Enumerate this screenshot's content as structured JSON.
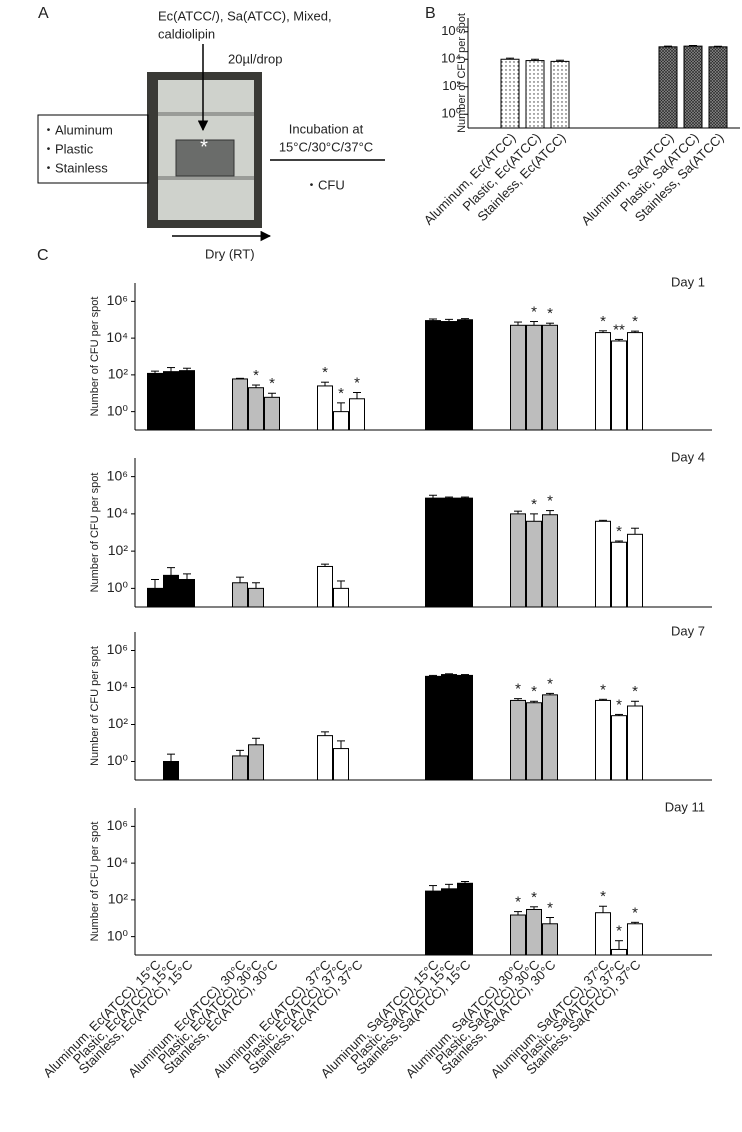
{
  "panel_a": {
    "label": "A",
    "samples_line1": "Ec(ATCC/), Sa(ATCC), Mixed,",
    "samples_line2": "caldiolipin",
    "drop": "20µl/drop",
    "photo_mark": "*",
    "surfaces": [
      "・Aluminum",
      "・Plastic",
      "・Stainless"
    ],
    "incubation_line1": "Incubation at",
    "incubation_line2": "15°C/30°C/37°C",
    "readout": "・CFU",
    "dry": "Dry (RT)"
  },
  "chart_data": [
    {
      "type": "bar",
      "panel_label": "B",
      "y_label": "Number of CFU per spot",
      "log_scale": true,
      "ylim": [
        0.1,
        10000000
      ],
      "yticks": [
        {
          "value": 1,
          "label": "10⁰"
        },
        {
          "value": 100,
          "label": "10²"
        },
        {
          "value": 10000,
          "label": "10⁴"
        },
        {
          "value": 1000000,
          "label": "10⁶"
        }
      ],
      "categories": [
        "Aluminum, Ec(ATCC)",
        "Plastic, Ec(ATCC)",
        "Stainless, Ec(ATCC)",
        "Aluminum, Sa(ATCC)",
        "Plastic, Sa(ATCC)",
        "Stainless, Sa(ATCC)"
      ],
      "values": [
        10000,
        8000,
        7000,
        80000,
        90000,
        80000
      ],
      "errors": [
        2000,
        2000,
        1500,
        10000,
        10000,
        8000
      ],
      "patterns": [
        "dots",
        "dots",
        "dots",
        "crosshatch",
        "crosshatch",
        "crosshatch"
      ]
    },
    {
      "type": "bar",
      "panel_label": "C",
      "title": "Day 1",
      "y_label": "Number of CFU  per spot",
      "log_scale": true,
      "ylim": [
        0.1,
        10000000
      ],
      "yticks": [
        {
          "value": 1,
          "label": "10⁰"
        },
        {
          "value": 100,
          "label": "10²"
        },
        {
          "value": 10000,
          "label": "10⁴"
        },
        {
          "value": 1000000,
          "label": "10⁶"
        }
      ],
      "values": [
        120,
        150,
        170,
        60,
        20,
        6,
        25,
        1,
        5,
        90000,
        80000,
        100000,
        50000,
        50000,
        50000,
        20000,
        7000,
        20000
      ],
      "errors": [
        40,
        100,
        60,
        5,
        8,
        4,
        15,
        2,
        6,
        20000,
        25000,
        15000,
        25000,
        30000,
        15000,
        5000,
        1500,
        4000
      ],
      "significance": [
        null,
        null,
        null,
        null,
        "*",
        "*",
        "*",
        "*",
        "*",
        null,
        null,
        null,
        null,
        "*",
        "*",
        "*",
        "**",
        "*"
      ],
      "colors": [
        "#000000",
        "#000000",
        "#000000",
        "#bdbdbd",
        "#bdbdbd",
        "#bdbdbd",
        "#ffffff",
        "#ffffff",
        "#ffffff",
        "#000000",
        "#000000",
        "#000000",
        "#bdbdbd",
        "#bdbdbd",
        "#bdbdbd",
        "#ffffff",
        "#ffffff",
        "#ffffff"
      ]
    },
    {
      "type": "bar",
      "title": "Day 4",
      "y_label": "Number of CFU  per spot",
      "log_scale": true,
      "ylim": [
        0.1,
        10000000
      ],
      "yticks": [
        {
          "value": 1,
          "label": "10⁰"
        },
        {
          "value": 100,
          "label": "10²"
        },
        {
          "value": 10000,
          "label": "10⁴"
        },
        {
          "value": 1000000,
          "label": "10⁶"
        }
      ],
      "values": [
        1,
        5,
        3,
        2,
        1,
        null,
        15,
        1,
        null,
        70000,
        70000,
        70000,
        10000,
        4000,
        9000,
        4000,
        300,
        800
      ],
      "errors": [
        2,
        8,
        3,
        2,
        1,
        null,
        5,
        1.5,
        null,
        30000,
        10000,
        10000,
        4000,
        6000,
        6000,
        500,
        50,
        900
      ],
      "significance": [
        null,
        null,
        null,
        null,
        null,
        null,
        null,
        null,
        null,
        null,
        null,
        null,
        null,
        "*",
        "*",
        null,
        "*",
        null
      ],
      "colors": [
        "#000000",
        "#000000",
        "#000000",
        "#bdbdbd",
        "#bdbdbd",
        "#bdbdbd",
        "#ffffff",
        "#ffffff",
        "#ffffff",
        "#000000",
        "#000000",
        "#000000",
        "#bdbdbd",
        "#bdbdbd",
        "#bdbdbd",
        "#ffffff",
        "#ffffff",
        "#ffffff"
      ]
    },
    {
      "type": "bar",
      "title": "Day 7",
      "y_label": "Number of CFU  per spot",
      "log_scale": true,
      "ylim": [
        0.1,
        10000000
      ],
      "yticks": [
        {
          "value": 1,
          "label": "10⁰"
        },
        {
          "value": 100,
          "label": "10²"
        },
        {
          "value": 10000,
          "label": "10⁴"
        },
        {
          "value": 1000000,
          "label": "10⁶"
        }
      ],
      "values": [
        null,
        1,
        null,
        2,
        8,
        null,
        25,
        5,
        null,
        40000,
        50000,
        45000,
        2000,
        1500,
        4000,
        2000,
        300,
        1000
      ],
      "errors": [
        null,
        1.5,
        null,
        2,
        10,
        null,
        15,
        8,
        null,
        5000,
        5000,
        5000,
        500,
        300,
        800,
        300,
        50,
        800
      ],
      "significance": [
        null,
        null,
        null,
        null,
        null,
        null,
        null,
        null,
        null,
        null,
        null,
        null,
        "*",
        "*",
        "*",
        "*",
        "*",
        "*"
      ],
      "colors": [
        "#000000",
        "#000000",
        "#000000",
        "#bdbdbd",
        "#bdbdbd",
        "#bdbdbd",
        "#ffffff",
        "#ffffff",
        "#ffffff",
        "#000000",
        "#000000",
        "#000000",
        "#bdbdbd",
        "#bdbdbd",
        "#bdbdbd",
        "#ffffff",
        "#ffffff",
        "#ffffff"
      ]
    },
    {
      "type": "bar",
      "title": "Day 11",
      "y_label": "Number of CFU  per spot",
      "log_scale": true,
      "ylim": [
        0.1,
        10000000
      ],
      "yticks": [
        {
          "value": 1,
          "label": "10⁰"
        },
        {
          "value": 100,
          "label": "10²"
        },
        {
          "value": 10000,
          "label": "10⁴"
        },
        {
          "value": 1000000,
          "label": "10⁶"
        }
      ],
      "categories": [
        "Aluminum, Ec(ATCC), 15°C",
        "Plastic, Ec(ATCC), 15°C",
        "Stainless, Ec(ATCC), 15°C",
        "Aluminum, Ec(ATCC), 30°C",
        "Plastic, Ec(ATCC), 30°C",
        "Stainless, Ec(ATCC), 30°C",
        "Aluminum, Ec(ATCC), 37°C",
        "Plastic, Ec(ATCC), 37°C",
        "Stainless, Ec(ATCC), 37°C",
        "Aluminum, Sa(ATCC), 15°C",
        "Plastic, Sa(ATCC), 15°C",
        "Stainless, Sa(ATCC), 15°C",
        "Aluminum, Sa(ATCC), 30°C",
        "Plastic, Sa(ATCC), 30°C",
        "Stainless, Sa(ATCC), 30°C",
        "Aluminum, Sa(ATCC), 37°C",
        "Plastic, Sa(ATCC), 37°C",
        "Stainless, Sa(ATCC), 37°C"
      ],
      "values": [
        null,
        null,
        null,
        null,
        null,
        null,
        null,
        null,
        null,
        300,
        400,
        800,
        15,
        30,
        5,
        20,
        0.2,
        5
      ],
      "errors": [
        null,
        null,
        null,
        null,
        null,
        null,
        null,
        null,
        null,
        300,
        300,
        200,
        8,
        12,
        6,
        25,
        0.4,
        1
      ],
      "significance": [
        null,
        null,
        null,
        null,
        null,
        null,
        null,
        null,
        null,
        null,
        null,
        null,
        "*",
        "*",
        "*",
        "*",
        "*",
        "*"
      ],
      "colors": [
        "#000000",
        "#000000",
        "#000000",
        "#bdbdbd",
        "#bdbdbd",
        "#bdbdbd",
        "#ffffff",
        "#ffffff",
        "#ffffff",
        "#000000",
        "#000000",
        "#000000",
        "#bdbdbd",
        "#bdbdbd",
        "#bdbdbd",
        "#ffffff",
        "#ffffff",
        "#ffffff"
      ]
    }
  ]
}
